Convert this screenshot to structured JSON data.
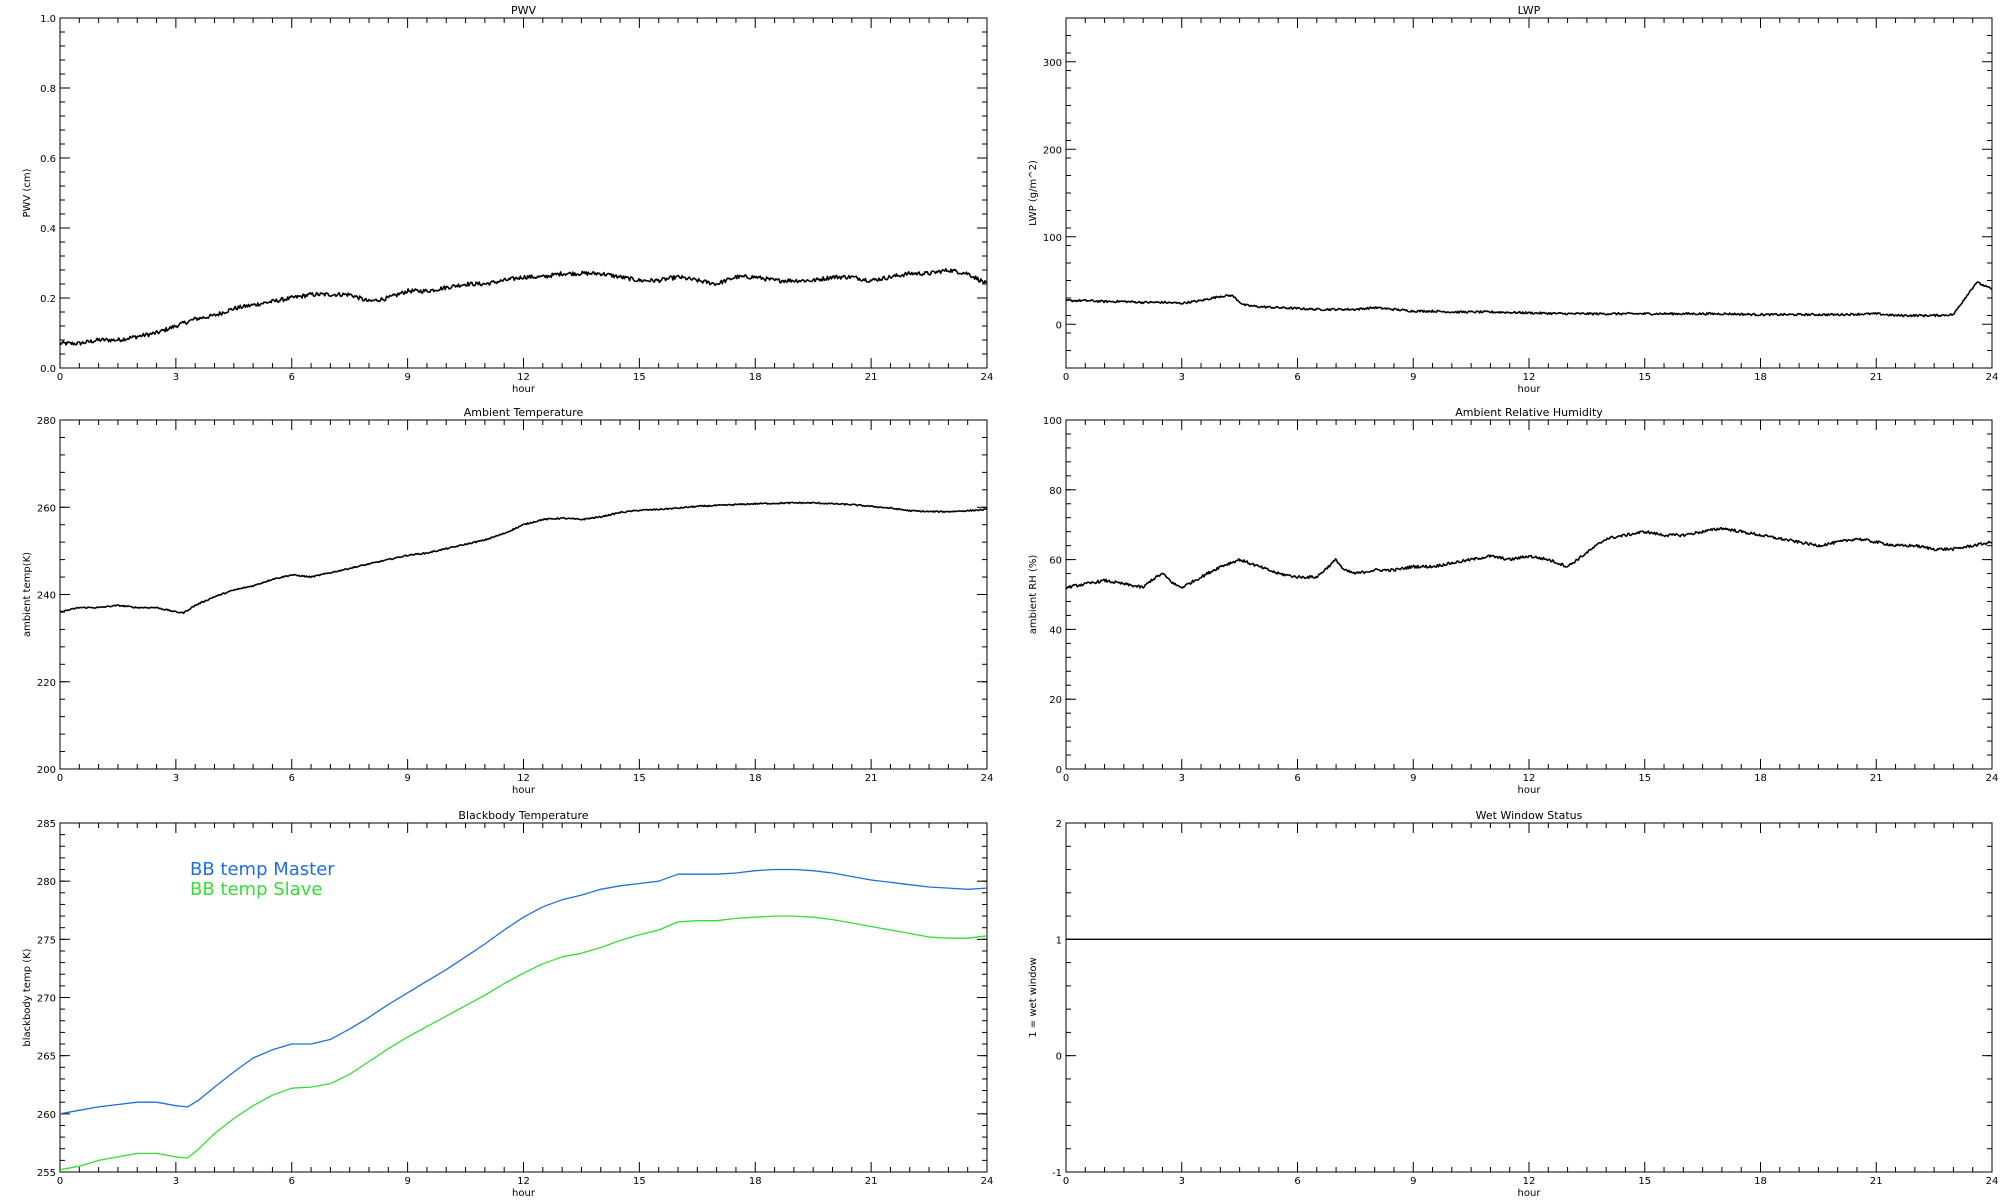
{
  "chart_data": [
    {
      "id": "pwv",
      "type": "line",
      "title": "PWV",
      "xlabel": "hour",
      "ylabel": "PWV (cm)",
      "xlim": [
        0,
        24
      ],
      "ylim": [
        0,
        1.0
      ],
      "xticks": [
        "0",
        "3",
        "6",
        "9",
        "12",
        "15",
        "18",
        "21",
        "24"
      ],
      "yticks": [
        "0.0",
        "0.2",
        "0.4",
        "0.6",
        "0.8",
        "1.0"
      ],
      "grid": false,
      "series": [
        {
          "name": "",
          "color": "#000000",
          "noise": 0.006,
          "x": [
            0,
            0.5,
            1,
            1.5,
            2,
            2.5,
            3,
            3.5,
            4,
            4.5,
            5,
            5.5,
            6,
            6.5,
            7,
            7.5,
            8,
            8.5,
            9,
            9.5,
            10,
            10.5,
            11,
            11.5,
            12,
            12.5,
            13,
            13.5,
            14,
            14.5,
            15,
            15.5,
            16,
            16.5,
            17,
            17.5,
            18,
            18.5,
            19,
            19.5,
            20,
            20.5,
            21,
            21.5,
            22,
            22.5,
            23,
            23.5,
            24
          ],
          "y": [
            0.07,
            0.07,
            0.08,
            0.08,
            0.09,
            0.1,
            0.12,
            0.14,
            0.15,
            0.17,
            0.18,
            0.19,
            0.2,
            0.21,
            0.21,
            0.21,
            0.19,
            0.2,
            0.22,
            0.22,
            0.23,
            0.24,
            0.24,
            0.25,
            0.26,
            0.26,
            0.27,
            0.27,
            0.27,
            0.26,
            0.25,
            0.25,
            0.26,
            0.25,
            0.24,
            0.26,
            0.26,
            0.25,
            0.25,
            0.25,
            0.26,
            0.26,
            0.25,
            0.26,
            0.27,
            0.27,
            0.28,
            0.27,
            0.24
          ]
        }
      ]
    },
    {
      "id": "lwp",
      "type": "line",
      "title": "LWP",
      "xlabel": "hour",
      "ylabel": "LWP (g/m^2)",
      "xlim": [
        0,
        24
      ],
      "ylim": [
        -50,
        350
      ],
      "xticks": [
        "0",
        "3",
        "6",
        "9",
        "12",
        "15",
        "18",
        "21",
        "24"
      ],
      "yticks": [
        "0",
        "100",
        "200",
        "300"
      ],
      "ytick_values": [
        0,
        100,
        200,
        300
      ],
      "grid": false,
      "series": [
        {
          "name": "",
          "color": "#000000",
          "noise": 1.2,
          "x": [
            0,
            0.5,
            1,
            1.5,
            2,
            2.5,
            3,
            3.5,
            4,
            4.3,
            4.6,
            5,
            5.5,
            6,
            6.5,
            7,
            7.5,
            8,
            8.5,
            9,
            9.5,
            10,
            11,
            12,
            13,
            14,
            15,
            16,
            17,
            18,
            19,
            20,
            21,
            21.5,
            22,
            22.5,
            23,
            23.3,
            23.6,
            24
          ],
          "y": [
            27,
            27,
            26,
            26,
            25,
            25,
            24,
            27,
            32,
            33,
            22,
            20,
            19,
            18,
            17,
            17,
            17,
            19,
            17,
            15,
            15,
            14,
            14,
            13,
            12,
            12,
            12,
            12,
            12,
            11,
            11,
            11,
            12,
            10,
            10,
            10,
            11,
            30,
            48,
            40
          ]
        }
      ]
    },
    {
      "id": "ambient-temperature",
      "type": "line",
      "title": "Ambient Temperature",
      "xlabel": "hour",
      "ylabel": "ambient temp(K)",
      "xlim": [
        0,
        24
      ],
      "ylim": [
        200,
        280
      ],
      "xticks": [
        "0",
        "3",
        "6",
        "9",
        "12",
        "15",
        "18",
        "21",
        "24"
      ],
      "yticks": [
        "200",
        "220",
        "240",
        "260",
        "280"
      ],
      "grid": false,
      "series": [
        {
          "name": "",
          "color": "#000000",
          "noise": 0.15,
          "x": [
            0,
            0.5,
            1,
            1.5,
            2,
            2.5,
            3,
            3.2,
            3.5,
            4,
            4.5,
            5,
            5.5,
            6,
            6.5,
            7,
            7.5,
            8,
            8.5,
            9,
            9.5,
            10,
            10.5,
            11,
            11.5,
            12,
            12.5,
            13,
            13.5,
            14,
            14.5,
            15,
            15.5,
            16,
            16.5,
            17,
            17.5,
            18,
            18.5,
            19,
            19.5,
            20,
            20.5,
            21,
            21.5,
            22,
            22.5,
            23,
            23.5,
            24
          ],
          "y": [
            236,
            237,
            237,
            237.5,
            237,
            237,
            236,
            235.8,
            237.5,
            239.5,
            241,
            242,
            243.5,
            244.5,
            244,
            245,
            246,
            247,
            248,
            249,
            249.5,
            250.5,
            251.5,
            252.5,
            254,
            256,
            257.2,
            257.5,
            257.2,
            257.8,
            258.8,
            259.3,
            259.5,
            259.8,
            260.2,
            260.4,
            260.6,
            260.8,
            260.9,
            261,
            261,
            260.8,
            260.6,
            260.2,
            259.8,
            259.2,
            259,
            259,
            259.2,
            259.5
          ]
        }
      ]
    },
    {
      "id": "ambient-relative-humidity",
      "type": "line",
      "title": "Ambient Relative Humidity",
      "xlabel": "hour",
      "ylabel": "ambient RH (%)",
      "xlim": [
        0,
        24
      ],
      "ylim": [
        0,
        100
      ],
      "xticks": [
        "0",
        "3",
        "6",
        "9",
        "12",
        "15",
        "18",
        "21",
        "24"
      ],
      "yticks": [
        "0",
        "20",
        "40",
        "60",
        "80",
        "100"
      ],
      "grid": false,
      "series": [
        {
          "name": "",
          "color": "#000000",
          "noise": 0.4,
          "x": [
            0,
            0.5,
            1,
            1.5,
            2,
            2.2,
            2.5,
            2.8,
            3,
            3.5,
            4,
            4.5,
            5,
            5.5,
            6,
            6.5,
            7,
            7.2,
            7.5,
            8,
            8.5,
            9,
            9.5,
            10,
            10.5,
            11,
            11.5,
            12,
            12.5,
            13,
            13.5,
            14,
            14.5,
            15,
            15.5,
            16,
            16.5,
            17,
            17.5,
            18,
            18.5,
            19,
            19.5,
            20,
            20.5,
            21,
            21.5,
            22,
            22.5,
            23,
            23.5,
            24
          ],
          "y": [
            52,
            53,
            54,
            53,
            52,
            54,
            56,
            53,
            52,
            55,
            58,
            60,
            58,
            56,
            55,
            55,
            60,
            57,
            56,
            57,
            57,
            58,
            58,
            59,
            60,
            61,
            60,
            61,
            60,
            58,
            62,
            66,
            67,
            68,
            67,
            67,
            68,
            69,
            68,
            67,
            66,
            65,
            64,
            65,
            66,
            65,
            64,
            64,
            63,
            63,
            64,
            65
          ]
        }
      ]
    },
    {
      "id": "blackbody-temperature",
      "type": "line",
      "title": "Blackbody Temperature",
      "xlabel": "hour",
      "ylabel": "blackbody temp (K)",
      "xlim": [
        0,
        24
      ],
      "ylim": [
        255,
        285
      ],
      "xticks": [
        "0",
        "3",
        "6",
        "9",
        "12",
        "15",
        "18",
        "21",
        "24"
      ],
      "yticks": [
        "255",
        "260",
        "265",
        "270",
        "275",
        "280",
        "285"
      ],
      "grid": false,
      "legend_position": "top-left",
      "series": [
        {
          "name": "BB temp Master",
          "color": "#1f6fe0",
          "noise": 0,
          "x": [
            0,
            0.5,
            1,
            1.5,
            2,
            2.5,
            3,
            3.3,
            3.6,
            4,
            4.5,
            5,
            5.5,
            6,
            6.5,
            7,
            7.5,
            8,
            8.5,
            9,
            9.5,
            10,
            10.5,
            11,
            11.5,
            12,
            12.5,
            13,
            13.5,
            14,
            14.5,
            15,
            15.5,
            16,
            16.5,
            17,
            17.5,
            18,
            18.5,
            19,
            19.5,
            20,
            20.5,
            21,
            21.5,
            22,
            22.5,
            23,
            23.5,
            24
          ],
          "y": [
            260,
            260.3,
            260.6,
            260.8,
            261,
            261,
            260.7,
            260.6,
            261.2,
            262.3,
            263.6,
            264.8,
            265.5,
            266,
            266,
            266.4,
            267.3,
            268.3,
            269.4,
            270.4,
            271.4,
            272.4,
            273.5,
            274.6,
            275.8,
            276.9,
            277.8,
            278.4,
            278.8,
            279.3,
            279.6,
            279.8,
            280,
            280.6,
            280.6,
            280.6,
            280.7,
            280.9,
            281,
            281,
            280.9,
            280.7,
            280.4,
            280.1,
            279.9,
            279.7,
            279.5,
            279.4,
            279.3,
            279.4
          ]
        },
        {
          "name": "BB temp Slave",
          "color": "#33dd33",
          "noise": 0,
          "x": [
            0,
            0.5,
            1,
            1.5,
            2,
            2.5,
            3,
            3.3,
            3.6,
            4,
            4.5,
            5,
            5.5,
            6,
            6.5,
            7,
            7.5,
            8,
            8.5,
            9,
            9.5,
            10,
            10.5,
            11,
            11.5,
            12,
            12.5,
            13,
            13.5,
            14,
            14.5,
            15,
            15.5,
            16,
            16.5,
            17,
            17.5,
            18,
            18.5,
            19,
            19.5,
            20,
            20.5,
            21,
            21.5,
            22,
            22.5,
            23,
            23.5,
            24
          ],
          "y": [
            255.2,
            255.5,
            256,
            256.3,
            256.6,
            256.6,
            256.3,
            256.2,
            257,
            258.3,
            259.6,
            260.7,
            261.6,
            262.2,
            262.3,
            262.6,
            263.4,
            264.5,
            265.6,
            266.6,
            267.5,
            268.4,
            269.3,
            270.2,
            271.2,
            272.1,
            272.9,
            273.5,
            273.8,
            274.3,
            274.9,
            275.4,
            275.8,
            276.5,
            276.6,
            276.6,
            276.8,
            276.9,
            277,
            277,
            276.9,
            276.7,
            276.4,
            276.1,
            275.8,
            275.5,
            275.2,
            275.1,
            275.1,
            275.3
          ]
        }
      ]
    },
    {
      "id": "wet-window-status",
      "type": "line",
      "title": "Wet Window Status",
      "xlabel": "hour",
      "ylabel": "1 = wet window",
      "xlim": [
        0,
        24
      ],
      "ylim": [
        -1,
        2
      ],
      "xticks": [
        "0",
        "3",
        "6",
        "9",
        "12",
        "15",
        "18",
        "21",
        "24"
      ],
      "yticks": [
        "-1",
        "0",
        "1",
        "2"
      ],
      "grid": false,
      "series": [
        {
          "name": "",
          "color": "#000000",
          "noise": 0,
          "x": [
            0,
            24
          ],
          "y": [
            1,
            1
          ]
        }
      ]
    }
  ]
}
